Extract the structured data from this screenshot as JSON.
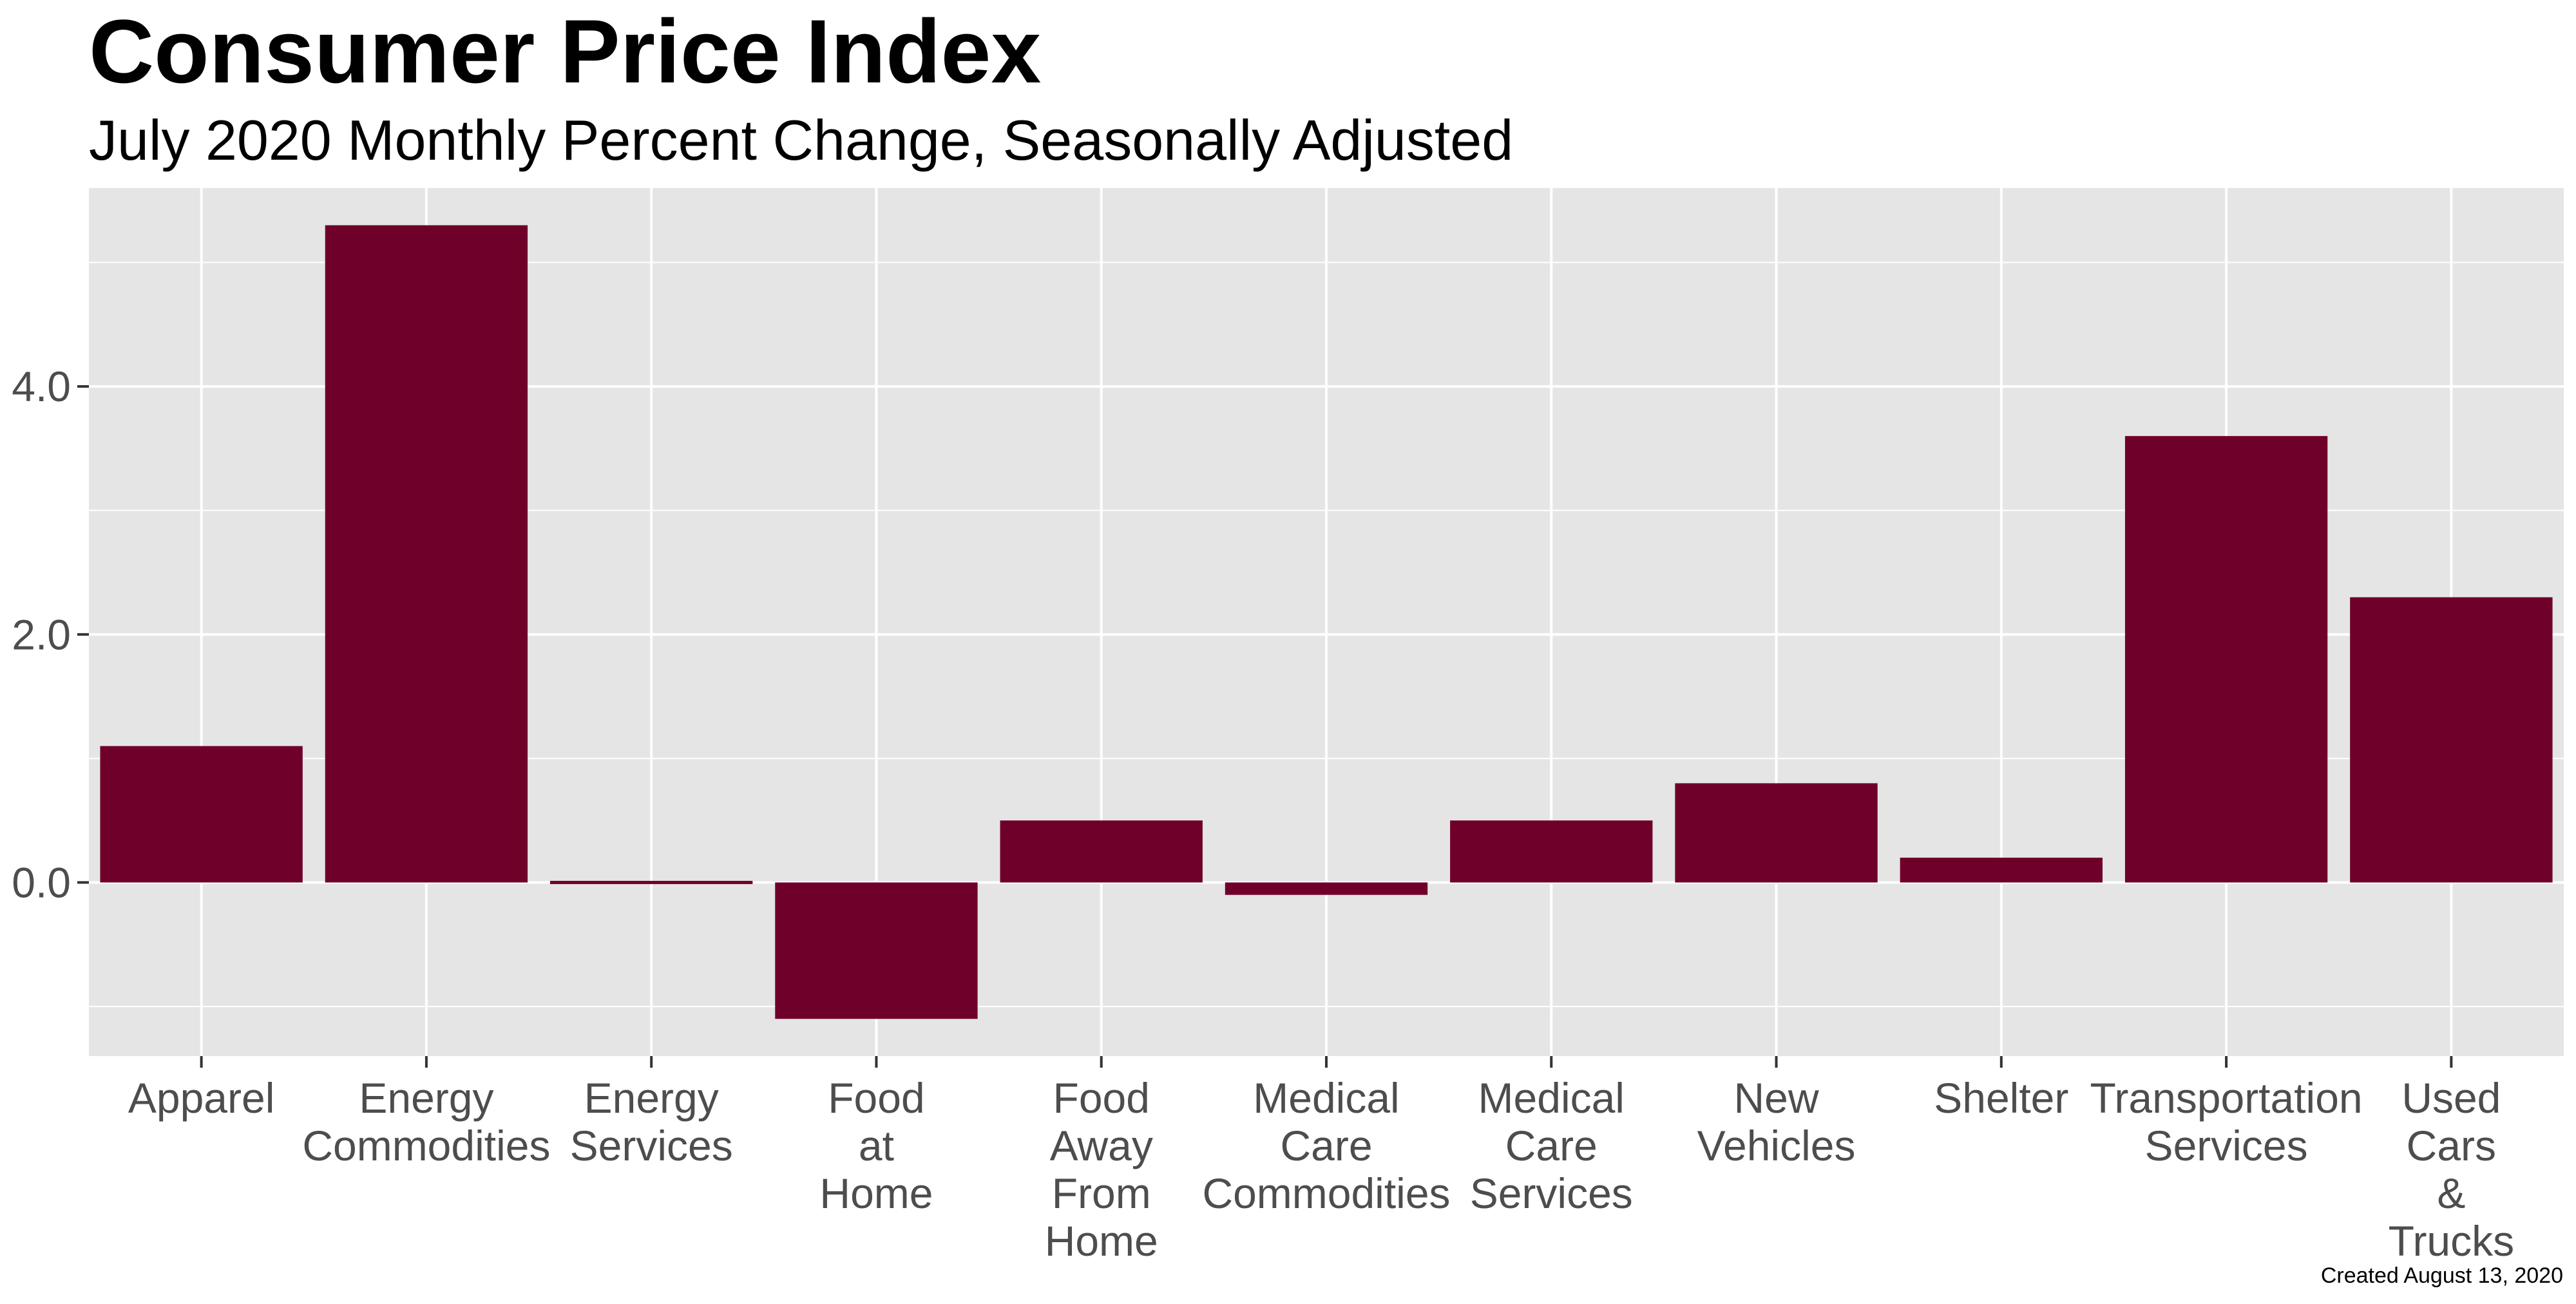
{
  "chart_data": {
    "type": "bar",
    "title": "Consumer Price Index",
    "subtitle": "July 2020 Monthly Percent Change, Seasonally Adjusted",
    "caption": "Created August 13, 2020",
    "xlabel": "",
    "ylabel": "",
    "categories": [
      [
        "Apparel"
      ],
      [
        "Energy",
        "Commodities"
      ],
      [
        "Energy",
        "Services"
      ],
      [
        "Food",
        "at",
        "Home"
      ],
      [
        "Food",
        "Away",
        "From",
        "Home"
      ],
      [
        "Medical",
        "Care",
        "Commodities"
      ],
      [
        "Medical",
        "Care",
        "Services"
      ],
      [
        "New",
        "Vehicles"
      ],
      [
        "Shelter"
      ],
      [
        "Transportation",
        "Services"
      ],
      [
        "Used",
        "Cars",
        "&",
        "Trucks"
      ]
    ],
    "values": [
      1.1,
      5.3,
      0.0,
      -1.1,
      0.5,
      -0.1,
      0.5,
      0.8,
      0.2,
      3.6,
      2.3
    ],
    "ylim": [
      -1.4,
      5.6
    ],
    "yticks": [
      0,
      2,
      4
    ],
    "ytick_labels": [
      "0.0",
      "2.0",
      "4.0"
    ],
    "grid": true,
    "colors": {
      "bar": "#6f002a",
      "panel": "#e5e5e5",
      "grid": "#ffffff"
    }
  }
}
